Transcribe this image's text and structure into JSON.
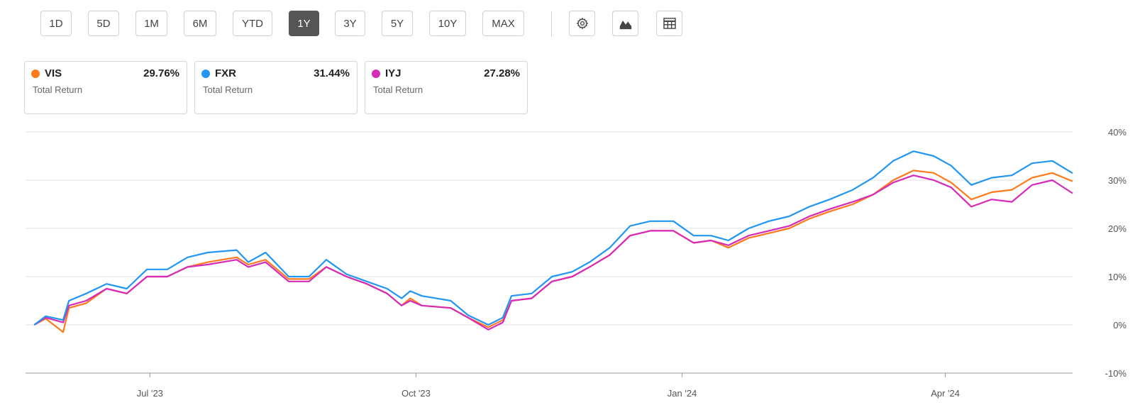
{
  "toolbar": {
    "ranges": [
      "1D",
      "5D",
      "1M",
      "6M",
      "YTD",
      "1Y",
      "3Y",
      "5Y",
      "10Y",
      "MAX"
    ],
    "active_range": "1Y",
    "icons": [
      "gear-icon",
      "chart-type-icon",
      "table-icon"
    ]
  },
  "legend_cards": [
    {
      "ticker": "VIS",
      "value": "29.76%",
      "sub": "Total Return",
      "color": "#ff7a1a"
    },
    {
      "ticker": "FXR",
      "value": "31.44%",
      "sub": "Total Return",
      "color": "#2196f3"
    },
    {
      "ticker": "IYJ",
      "value": "27.28%",
      "sub": "Total Return",
      "color": "#d52bb8"
    }
  ],
  "chart_data": {
    "type": "line",
    "title": "",
    "xlabel": "",
    "ylabel": "",
    "x_range": [
      "2023-05-19",
      "2024-05-15"
    ],
    "x_ticks": [
      {
        "date": "2023-07-01",
        "label": "Jul '23"
      },
      {
        "date": "2023-10-01",
        "label": "Oct '23"
      },
      {
        "date": "2024-01-01",
        "label": "Jan '24"
      },
      {
        "date": "2024-04-01",
        "label": "Apr '24"
      }
    ],
    "ylim": [
      -10,
      40
    ],
    "y_ticks": [
      40,
      30,
      20,
      10,
      0,
      -10
    ],
    "y_tick_labels": [
      "40%",
      "30%",
      "20%",
      "10%",
      "0%",
      "-10%"
    ],
    "grid": "horizontal",
    "series": [
      {
        "name": "VIS",
        "color": "#ff7a1a",
        "points": [
          [
            "2023-05-22",
            0
          ],
          [
            "2023-05-26",
            1.3
          ],
          [
            "2023-06-01",
            -1.5
          ],
          [
            "2023-06-03",
            3.5
          ],
          [
            "2023-06-09",
            4.5
          ],
          [
            "2023-06-16",
            7.5
          ],
          [
            "2023-06-23",
            6.5
          ],
          [
            "2023-06-30",
            10
          ],
          [
            "2023-07-07",
            10
          ],
          [
            "2023-07-14",
            12
          ],
          [
            "2023-07-21",
            13
          ],
          [
            "2023-07-31",
            14
          ],
          [
            "2023-08-04",
            12.5
          ],
          [
            "2023-08-10",
            13.5
          ],
          [
            "2023-08-18",
            9.5
          ],
          [
            "2023-08-25",
            9.5
          ],
          [
            "2023-08-31",
            12
          ],
          [
            "2023-09-07",
            10
          ],
          [
            "2023-09-14",
            8.5
          ],
          [
            "2023-09-21",
            6.5
          ],
          [
            "2023-09-26",
            4
          ],
          [
            "2023-09-29",
            5.5
          ],
          [
            "2023-10-03",
            4
          ],
          [
            "2023-10-13",
            3.5
          ],
          [
            "2023-10-19",
            1.5
          ],
          [
            "2023-10-26",
            -0.5
          ],
          [
            "2023-10-31",
            1
          ],
          [
            "2023-11-03",
            5
          ],
          [
            "2023-11-10",
            5.5
          ],
          [
            "2023-11-17",
            9
          ],
          [
            "2023-11-24",
            10
          ],
          [
            "2023-11-30",
            12
          ],
          [
            "2023-12-07",
            14.5
          ],
          [
            "2023-12-14",
            18.5
          ],
          [
            "2023-12-21",
            19.5
          ],
          [
            "2023-12-29",
            19.5
          ],
          [
            "2024-01-05",
            17
          ],
          [
            "2024-01-11",
            17.5
          ],
          [
            "2024-01-17",
            16
          ],
          [
            "2024-01-24",
            18
          ],
          [
            "2024-01-31",
            19
          ],
          [
            "2024-02-07",
            20
          ],
          [
            "2024-02-14",
            22
          ],
          [
            "2024-02-21",
            23.5
          ],
          [
            "2024-02-29",
            25
          ],
          [
            "2024-03-07",
            27
          ],
          [
            "2024-03-14",
            30
          ],
          [
            "2024-03-21",
            32
          ],
          [
            "2024-03-28",
            31.5
          ],
          [
            "2024-04-03",
            29.5
          ],
          [
            "2024-04-10",
            26
          ],
          [
            "2024-04-17",
            27.5
          ],
          [
            "2024-04-24",
            28
          ],
          [
            "2024-05-01",
            30.5
          ],
          [
            "2024-05-08",
            31.5
          ],
          [
            "2024-05-15",
            29.76
          ]
        ]
      },
      {
        "name": "FXR",
        "color": "#2196f3",
        "points": [
          [
            "2023-05-22",
            0
          ],
          [
            "2023-05-26",
            1.8
          ],
          [
            "2023-06-01",
            1
          ],
          [
            "2023-06-03",
            5
          ],
          [
            "2023-06-09",
            6.5
          ],
          [
            "2023-06-16",
            8.5
          ],
          [
            "2023-06-23",
            7.5
          ],
          [
            "2023-06-30",
            11.5
          ],
          [
            "2023-07-07",
            11.5
          ],
          [
            "2023-07-14",
            14
          ],
          [
            "2023-07-21",
            15
          ],
          [
            "2023-07-31",
            15.5
          ],
          [
            "2023-08-04",
            13
          ],
          [
            "2023-08-10",
            15
          ],
          [
            "2023-08-18",
            10
          ],
          [
            "2023-08-25",
            10
          ],
          [
            "2023-08-31",
            13.5
          ],
          [
            "2023-09-07",
            10.5
          ],
          [
            "2023-09-14",
            9
          ],
          [
            "2023-09-21",
            7.5
          ],
          [
            "2023-09-26",
            5.5
          ],
          [
            "2023-09-29",
            7
          ],
          [
            "2023-10-03",
            6
          ],
          [
            "2023-10-13",
            5
          ],
          [
            "2023-10-19",
            2
          ],
          [
            "2023-10-26",
            0
          ],
          [
            "2023-10-31",
            1.5
          ],
          [
            "2023-11-03",
            6
          ],
          [
            "2023-11-10",
            6.5
          ],
          [
            "2023-11-17",
            10
          ],
          [
            "2023-11-24",
            11
          ],
          [
            "2023-11-30",
            13
          ],
          [
            "2023-12-07",
            16
          ],
          [
            "2023-12-14",
            20.5
          ],
          [
            "2023-12-21",
            21.5
          ],
          [
            "2023-12-29",
            21.5
          ],
          [
            "2024-01-05",
            18.5
          ],
          [
            "2024-01-11",
            18.5
          ],
          [
            "2024-01-17",
            17.5
          ],
          [
            "2024-01-24",
            20
          ],
          [
            "2024-01-31",
            21.5
          ],
          [
            "2024-02-07",
            22.5
          ],
          [
            "2024-02-14",
            24.5
          ],
          [
            "2024-02-21",
            26
          ],
          [
            "2024-02-29",
            28
          ],
          [
            "2024-03-07",
            30.5
          ],
          [
            "2024-03-14",
            34
          ],
          [
            "2024-03-21",
            36
          ],
          [
            "2024-03-28",
            35
          ],
          [
            "2024-04-03",
            33
          ],
          [
            "2024-04-10",
            29
          ],
          [
            "2024-04-17",
            30.5
          ],
          [
            "2024-04-24",
            31
          ],
          [
            "2024-05-01",
            33.5
          ],
          [
            "2024-05-08",
            34
          ],
          [
            "2024-05-15",
            31.44
          ]
        ]
      },
      {
        "name": "IYJ",
        "color": "#d52bb8",
        "points": [
          [
            "2023-05-22",
            0
          ],
          [
            "2023-05-26",
            1.5
          ],
          [
            "2023-06-01",
            0.5
          ],
          [
            "2023-06-03",
            4
          ],
          [
            "2023-06-09",
            5
          ],
          [
            "2023-06-16",
            7.5
          ],
          [
            "2023-06-23",
            6.5
          ],
          [
            "2023-06-30",
            10
          ],
          [
            "2023-07-07",
            10
          ],
          [
            "2023-07-14",
            12
          ],
          [
            "2023-07-21",
            12.5
          ],
          [
            "2023-07-31",
            13.5
          ],
          [
            "2023-08-04",
            12
          ],
          [
            "2023-08-10",
            13
          ],
          [
            "2023-08-18",
            9
          ],
          [
            "2023-08-25",
            9
          ],
          [
            "2023-08-31",
            12
          ],
          [
            "2023-09-07",
            10
          ],
          [
            "2023-09-14",
            8.5
          ],
          [
            "2023-09-21",
            6.5
          ],
          [
            "2023-09-26",
            4
          ],
          [
            "2023-09-29",
            5
          ],
          [
            "2023-10-03",
            4
          ],
          [
            "2023-10-13",
            3.5
          ],
          [
            "2023-10-19",
            1.5
          ],
          [
            "2023-10-26",
            -1
          ],
          [
            "2023-10-31",
            0.5
          ],
          [
            "2023-11-03",
            5
          ],
          [
            "2023-11-10",
            5.5
          ],
          [
            "2023-11-17",
            9
          ],
          [
            "2023-11-24",
            10
          ],
          [
            "2023-11-30",
            12
          ],
          [
            "2023-12-07",
            14.5
          ],
          [
            "2023-12-14",
            18.5
          ],
          [
            "2023-12-21",
            19.5
          ],
          [
            "2023-12-29",
            19.5
          ],
          [
            "2024-01-05",
            17
          ],
          [
            "2024-01-11",
            17.5
          ],
          [
            "2024-01-17",
            16.5
          ],
          [
            "2024-01-24",
            18.5
          ],
          [
            "2024-01-31",
            19.5
          ],
          [
            "2024-02-07",
            20.5
          ],
          [
            "2024-02-14",
            22.5
          ],
          [
            "2024-02-21",
            24
          ],
          [
            "2024-02-29",
            25.5
          ],
          [
            "2024-03-07",
            27
          ],
          [
            "2024-03-14",
            29.5
          ],
          [
            "2024-03-21",
            31
          ],
          [
            "2024-03-28",
            30
          ],
          [
            "2024-04-03",
            28.5
          ],
          [
            "2024-04-10",
            24.5
          ],
          [
            "2024-04-17",
            26
          ],
          [
            "2024-04-24",
            25.5
          ],
          [
            "2024-05-01",
            29
          ],
          [
            "2024-05-08",
            30
          ],
          [
            "2024-05-15",
            27.28
          ]
        ]
      }
    ]
  }
}
